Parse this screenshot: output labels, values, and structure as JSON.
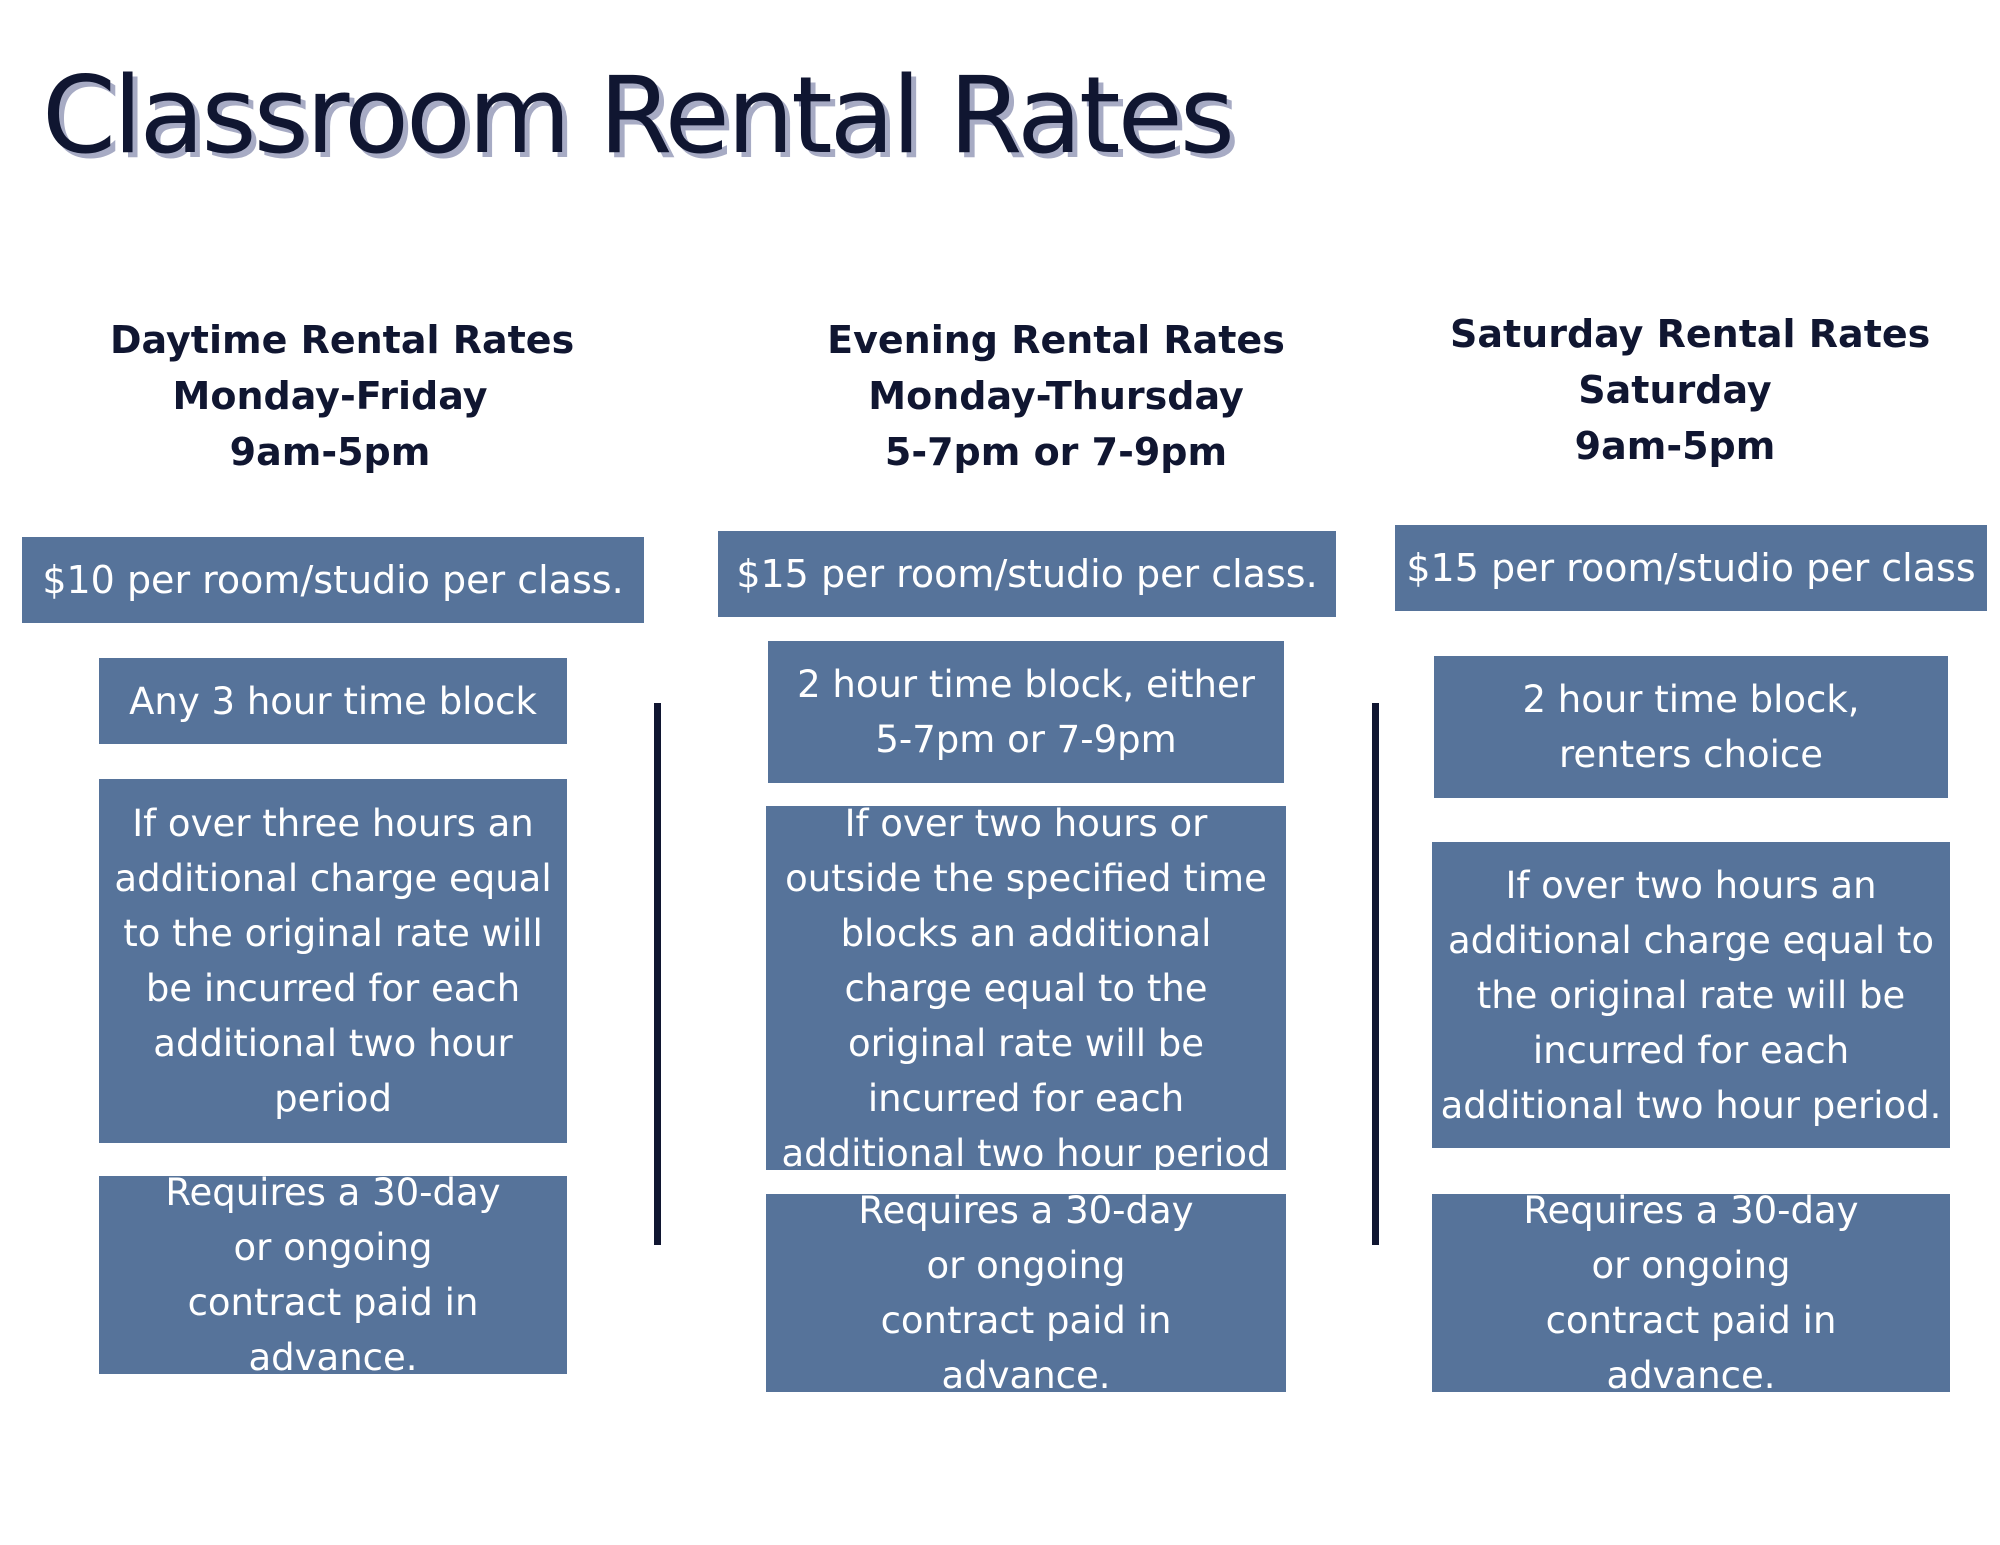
{
  "title": "Classroom Rental Rates",
  "columns": [
    {
      "heading": [
        "Daytime Rental Rates",
        "Monday-Friday",
        "9am-5pm"
      ],
      "rate": "$10 per room/studio per class.",
      "block": "Any 3 hour time block",
      "overage": "If over three hours an additional charge equal to the original rate will be incurred for each additional two hour period",
      "contract": "Requires a 30-day or ongoing contract paid in advance."
    },
    {
      "heading": [
        "Evening Rental Rates",
        "Monday-Thursday",
        "5-7pm or 7-9pm"
      ],
      "rate": "$15 per room/studio per class.",
      "block": "2 hour time block, either 5-7pm or 7-9pm",
      "overage": "If over two hours or outside the specified time blocks an additional charge equal to the original rate will be incurred for each additional two hour period",
      "contract": "Requires a 30-day or ongoing contract paid in advance."
    },
    {
      "heading": [
        "Saturday Rental Rates",
        "Saturday",
        "9am-5pm"
      ],
      "rate": "$15 per room/studio per class",
      "block": "2 hour time block, renters choice",
      "overage": "If over two hours an additional charge equal to the original rate will be incurred for each additional two hour period.",
      "contract": "Requires a 30-day or ongoing contract paid in advance."
    }
  ],
  "colors": {
    "title": "#101631",
    "title_shadow": "#a7abc4",
    "box_fill": "#56739a",
    "box_text": "#ffffff",
    "heading_text": "#101631"
  }
}
